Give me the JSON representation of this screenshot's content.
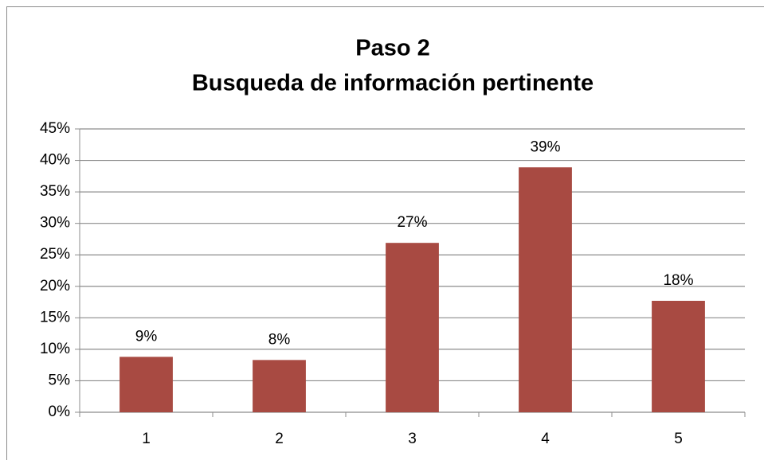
{
  "chart_data": {
    "type": "bar",
    "title": [
      "Paso 2",
      "Busqueda de información pertinente"
    ],
    "categories": [
      "1",
      "2",
      "3",
      "4",
      "5"
    ],
    "values": [
      8.8,
      8.3,
      26.9,
      38.9,
      17.7
    ],
    "value_labels": [
      "9%",
      "8%",
      "27%",
      "39%",
      "18%"
    ],
    "color": "#a84a42",
    "ylim": [
      0,
      45
    ],
    "yticks": [
      {
        "value": 0,
        "label": "0%"
      },
      {
        "value": 5,
        "label": "5%"
      },
      {
        "value": 10,
        "label": "10%"
      },
      {
        "value": 15,
        "label": "15%"
      },
      {
        "value": 20,
        "label": "20%"
      },
      {
        "value": 25,
        "label": "25%"
      },
      {
        "value": 30,
        "label": "30%"
      },
      {
        "value": 35,
        "label": "35%"
      },
      {
        "value": 40,
        "label": "40%"
      },
      {
        "value": 45,
        "label": "45%"
      }
    ],
    "grid": true
  }
}
